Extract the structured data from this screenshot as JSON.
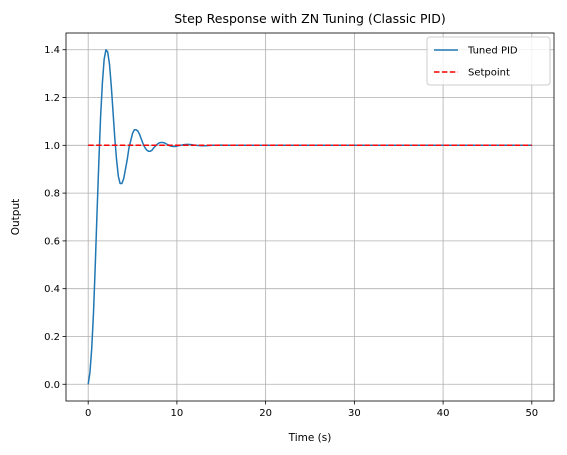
{
  "chart_data": {
    "type": "line",
    "title": "Step Response with ZN Tuning (Classic PID)",
    "xlabel": "Time (s)",
    "ylabel": "Output",
    "xlim": [
      -2.5,
      52.5
    ],
    "ylim": [
      -0.07,
      1.47
    ],
    "xticks": [
      0,
      10,
      20,
      30,
      40,
      50
    ],
    "yticks": [
      0.0,
      0.2,
      0.4,
      0.6,
      0.8,
      1.0,
      1.2,
      1.4
    ],
    "xtick_labels": [
      "0",
      "10",
      "20",
      "30",
      "40",
      "50"
    ],
    "ytick_labels": [
      "0.0",
      "0.2",
      "0.4",
      "0.6",
      "0.8",
      "1.0",
      "1.2",
      "1.4"
    ],
    "grid": true,
    "legend_position": "top-right",
    "series": [
      {
        "name": "Tuned PID",
        "color": "#1f77b4",
        "style": "solid",
        "x": [
          0,
          0.2,
          0.4,
          0.6,
          0.8,
          1.0,
          1.2,
          1.4,
          1.6,
          1.8,
          2.0,
          2.2,
          2.4,
          2.6,
          2.8,
          3.0,
          3.2,
          3.4,
          3.6,
          3.8,
          4.0,
          4.2,
          4.4,
          4.6,
          4.8,
          5.0,
          5.2,
          5.4,
          5.6,
          5.8,
          6.0,
          6.2,
          6.4,
          6.6,
          6.8,
          7.0,
          7.2,
          7.4,
          7.6,
          7.8,
          8.0,
          8.2,
          8.4,
          8.6,
          8.8,
          9.0,
          9.2,
          9.4,
          9.6,
          9.8,
          10.0,
          10.4,
          10.8,
          11.2,
          11.6,
          12.0,
          12.4,
          12.8,
          13.2,
          13.6,
          14.0,
          14.5,
          15.0,
          15.5,
          16.0,
          17.0,
          18.0,
          20.0,
          25.0,
          30.0,
          35.0,
          40.0,
          45.0,
          50.0
        ],
        "y": [
          0.0,
          0.05,
          0.15,
          0.3,
          0.5,
          0.72,
          0.93,
          1.12,
          1.26,
          1.36,
          1.4,
          1.39,
          1.34,
          1.25,
          1.14,
          1.03,
          0.94,
          0.87,
          0.84,
          0.84,
          0.86,
          0.9,
          0.94,
          0.99,
          1.02,
          1.05,
          1.065,
          1.065,
          1.06,
          1.045,
          1.025,
          1.005,
          0.99,
          0.98,
          0.975,
          0.975,
          0.98,
          0.99,
          0.998,
          1.005,
          1.01,
          1.012,
          1.012,
          1.01,
          1.006,
          1.002,
          0.998,
          0.996,
          0.995,
          0.995,
          0.997,
          1.0,
          1.003,
          1.004,
          1.003,
          1.001,
          0.999,
          0.998,
          0.998,
          0.999,
          1.0,
          1.0005,
          1.0006,
          1.0004,
          1.0,
          1.0,
          1.0,
          1.0,
          1.0,
          1.0,
          1.0,
          1.0,
          1.0,
          1.0
        ]
      },
      {
        "name": "Setpoint",
        "color": "#ff0000",
        "style": "dashed",
        "x": [
          0,
          50
        ],
        "y": [
          1.0,
          1.0
        ]
      }
    ]
  }
}
